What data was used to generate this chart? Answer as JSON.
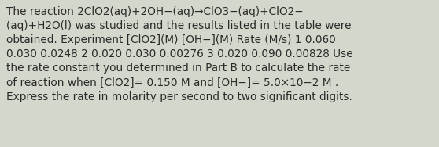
{
  "text": "The reaction 2ClO2(aq)+2OH−(aq)→ClO3−(aq)+ClO2−\n(aq)+H2O(l) was studied and the results listed in the table were\nobtained. Experiment [ClO2](M) [OH−](M) Rate (M/s) 1 0.060\n0.030 0.0248 2 0.020 0.030 0.00276 3 0.020 0.090 0.00828 Use\nthe rate constant you determined in Part B to calculate the rate\nof reaction when [ClO2]= 0.150 M and [OH−]= 5.0×10−2 M .\nExpress the rate in molarity per second to two significant digits.",
  "bg_color": "#d4d8cc",
  "text_color": "#2a2a2a",
  "fontsize": 9.8,
  "font_family": "DejaVu Sans"
}
